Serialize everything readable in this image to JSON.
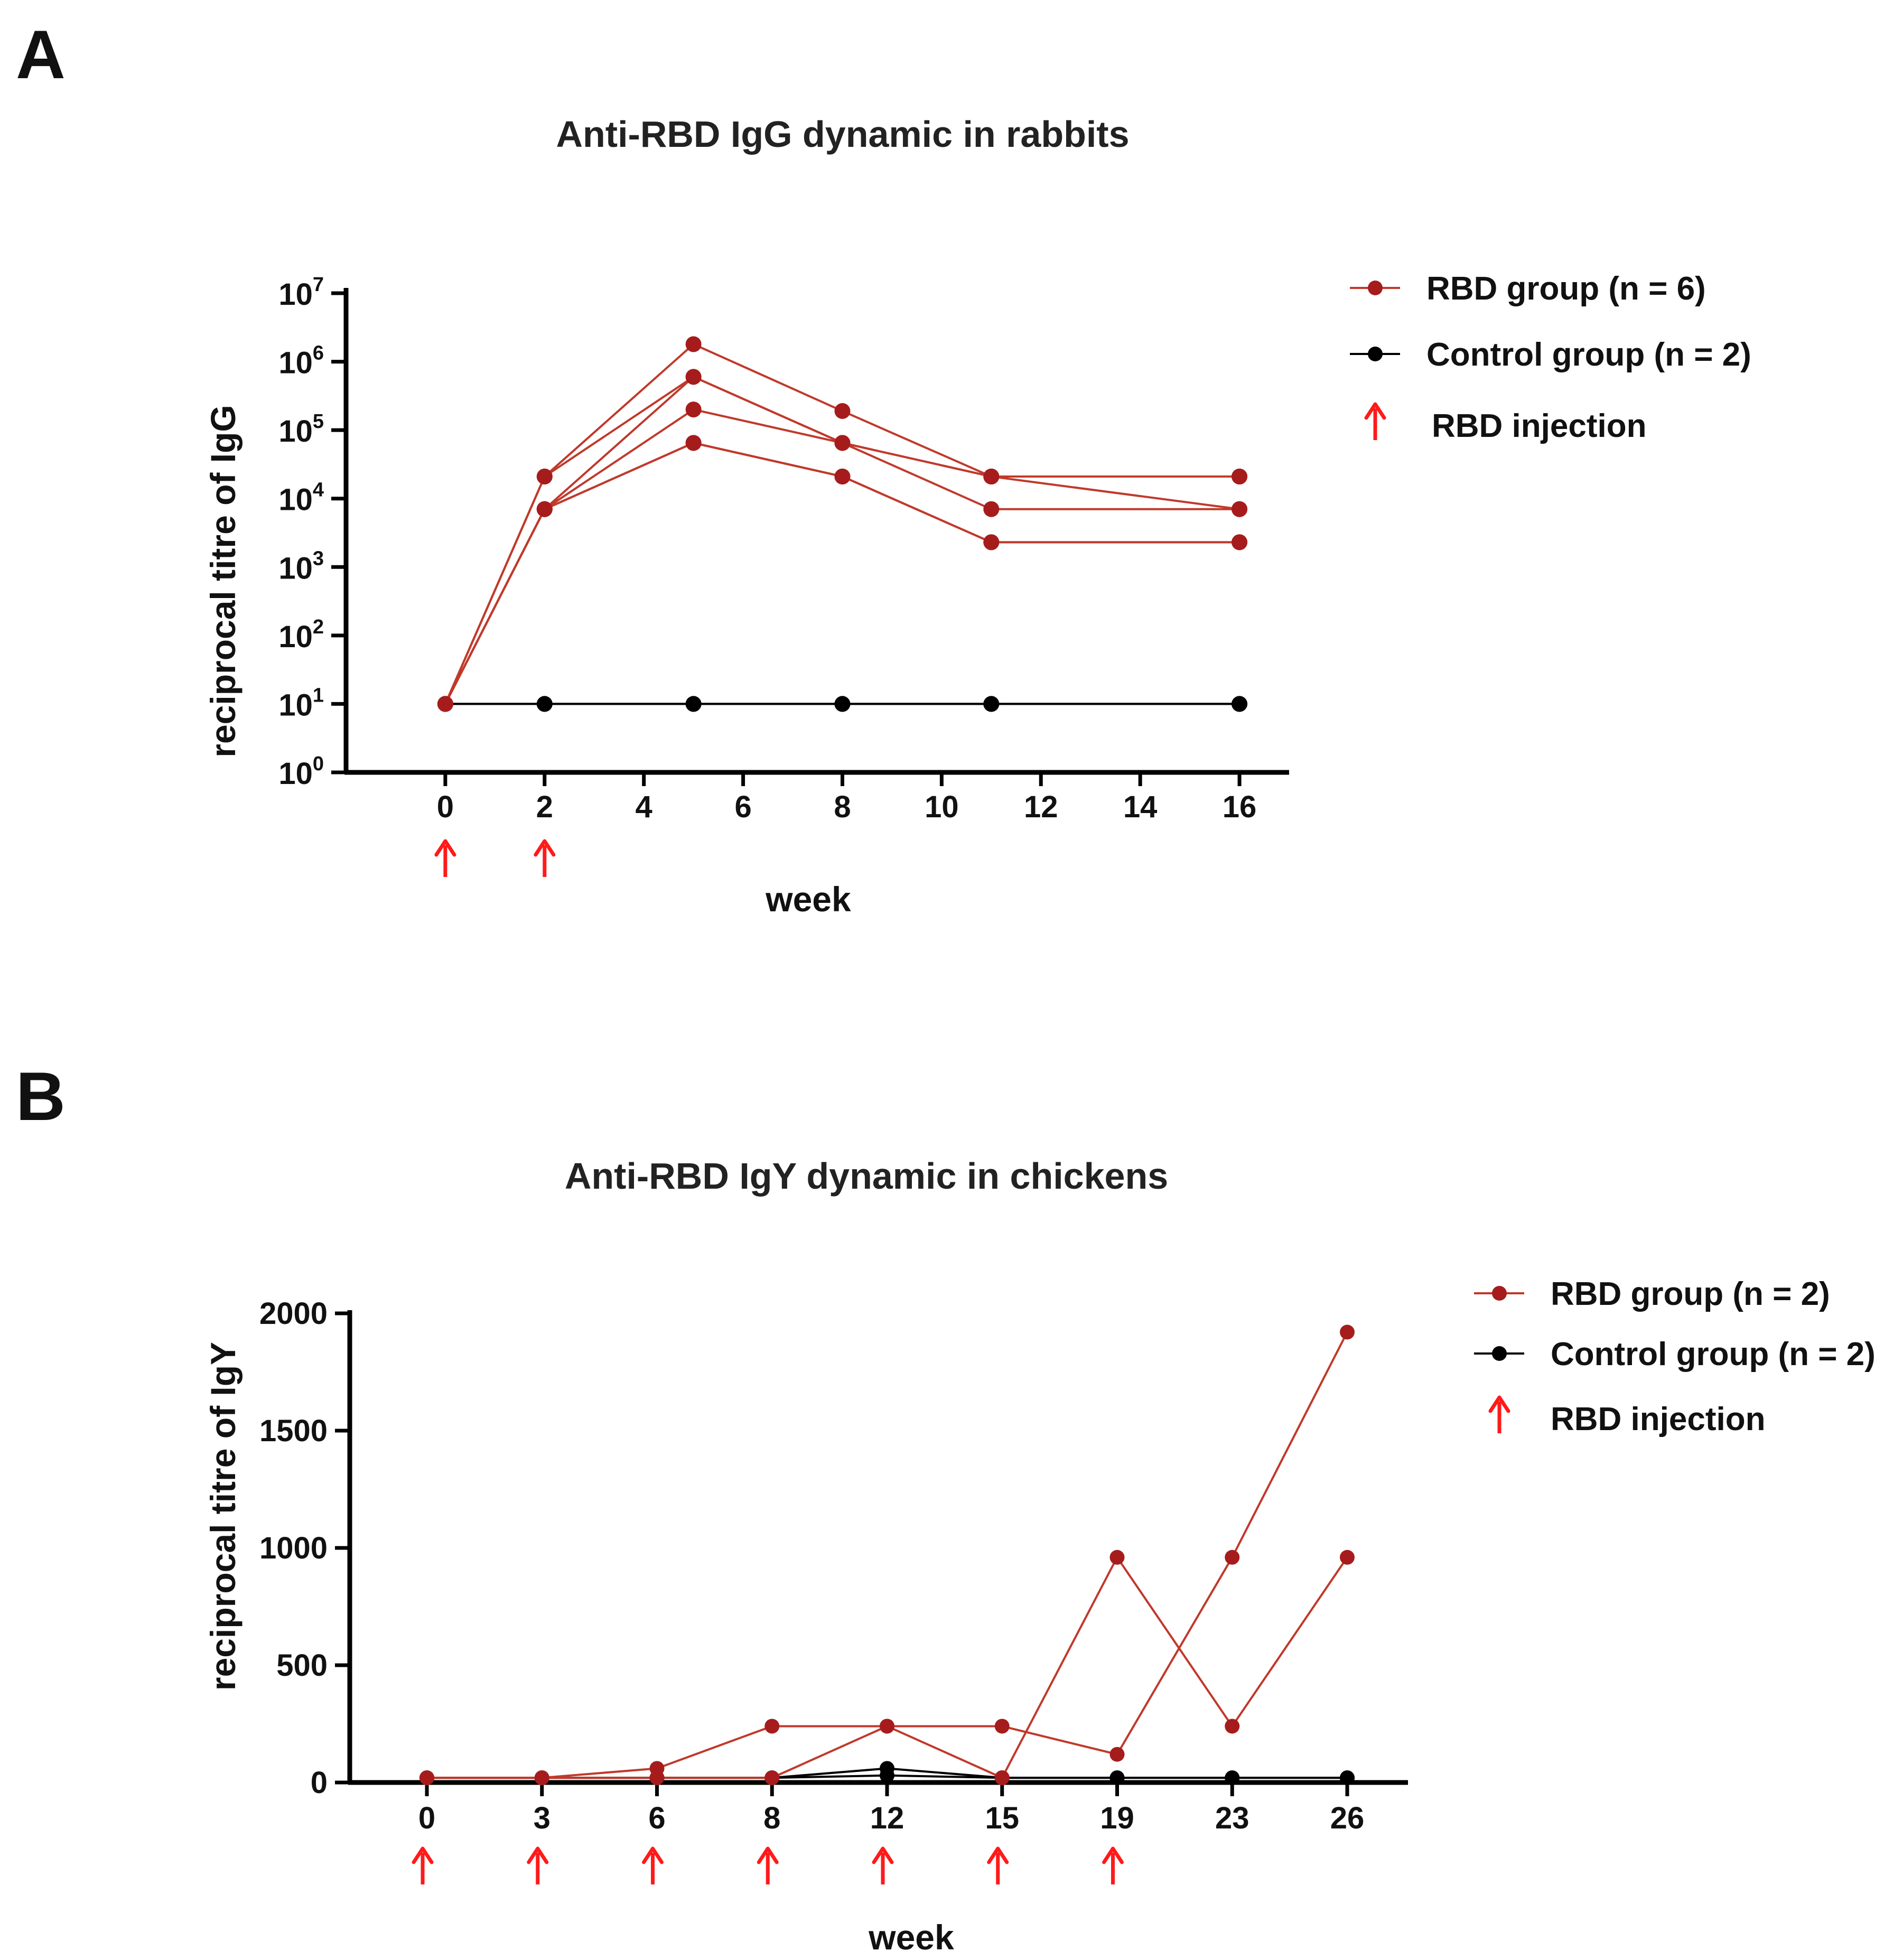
{
  "chart_data": [
    {
      "panel": "A",
      "type": "line",
      "title": "Anti-RBD IgG dynamic in rabbits",
      "xlabel": "week",
      "ylabel": "reciprocal titre of IgG",
      "yscale": "log",
      "ylim": [
        1,
        10000000
      ],
      "y_ticks": [
        {
          "base": "10",
          "exp": "0"
        },
        {
          "base": "10",
          "exp": "1"
        },
        {
          "base": "10",
          "exp": "2"
        },
        {
          "base": "10",
          "exp": "3"
        },
        {
          "base": "10",
          "exp": "4"
        },
        {
          "base": "10",
          "exp": "5"
        },
        {
          "base": "10",
          "exp": "6"
        },
        {
          "base": "10",
          "exp": "7"
        }
      ],
      "xlim": [
        -2,
        17
      ],
      "x_ticks": [
        "0",
        "2",
        "4",
        "6",
        "8",
        "10",
        "12",
        "14",
        "16"
      ],
      "injection_weeks": [
        0,
        2
      ],
      "legend": {
        "position": "right",
        "entries": [
          "RBD group (n = 6)",
          "Control group (n = 2)",
          "RBD injection"
        ]
      },
      "series": [
        {
          "name": "RBD group (n = 6)",
          "color": "#c0392b",
          "marker": "#a61c1c",
          "x": [
            0,
            2,
            5,
            8,
            11,
            16
          ],
          "lines": [
            [
              10,
              21000,
              1800000,
              190000,
              21000,
              21000
            ],
            [
              10,
              21000,
              600000,
              65000,
              21000,
              7000
            ],
            [
              10,
              7000,
              600000,
              65000,
              7000,
              7000
            ],
            [
              10,
              7000,
              200000,
              65000,
              21000,
              21000
            ],
            [
              10,
              7000,
              65000,
              21000,
              2300,
              2300
            ],
            [
              10,
              7000,
              65000,
              21000,
              2300,
              2300
            ]
          ]
        },
        {
          "name": "Control group (n = 2)",
          "color": "#000000",
          "marker": "#000000",
          "x": [
            0,
            2,
            5,
            8,
            11,
            16
          ],
          "lines": [
            [
              10,
              10,
              10,
              10,
              10,
              10
            ],
            [
              10,
              10,
              10,
              10,
              10,
              10
            ]
          ]
        }
      ]
    },
    {
      "panel": "B",
      "type": "line",
      "title": "Anti-RBD IgY dynamic in chickens",
      "xlabel": "week",
      "ylabel": "reciprocal titre of IgY",
      "yscale": "linear",
      "ylim": [
        0,
        2000
      ],
      "y_ticks": [
        "0",
        "500",
        "1000",
        "1500",
        "2000"
      ],
      "x_categories": [
        "0",
        "3",
        "6",
        "8",
        "12",
        "15",
        "19",
        "23",
        "26"
      ],
      "injection_weeks": [
        "0",
        "3",
        "6",
        "8",
        "12",
        "15",
        "19"
      ],
      "legend": {
        "position": "right",
        "entries": [
          "RBD group (n = 2)",
          "Control group (n = 2)",
          "RBD injection"
        ]
      },
      "series": [
        {
          "name": "RBD group (n = 2)",
          "color": "#c0392b",
          "marker": "#a61c1c",
          "lines": [
            [
              20,
              20,
              60,
              240,
              240,
              240,
              120,
              960,
              1920
            ],
            [
              20,
              20,
              20,
              20,
              240,
              20,
              960,
              240,
              960
            ]
          ]
        },
        {
          "name": "Control group (n = 2)",
          "color": "#000000",
          "marker": "#000000",
          "lines": [
            [
              20,
              20,
              20,
              20,
              60,
              20,
              20,
              20,
              20
            ],
            [
              20,
              20,
              20,
              20,
              30,
              20,
              20,
              20,
              20
            ]
          ]
        }
      ]
    }
  ],
  "colors": {
    "rbd_line": "#c0392b",
    "rbd_marker": "#a61c1c",
    "control": "#000000",
    "injection_arrow": "#ff1a1a"
  }
}
